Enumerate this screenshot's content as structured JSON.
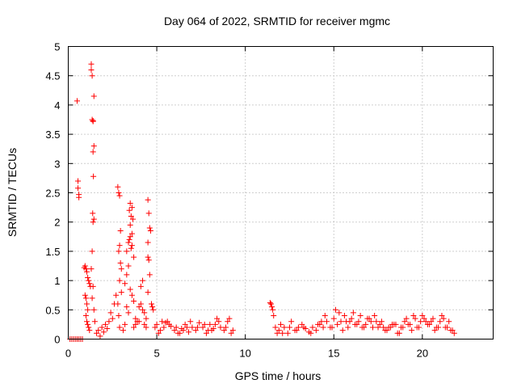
{
  "chart_data": {
    "type": "scatter",
    "title": "Day 064 of 2022, SRMTID for receiver mgmc",
    "xlabel": "GPS time / hours",
    "ylabel": "SRMTID / TECUs",
    "xlim": [
      0,
      24
    ],
    "ylim": [
      0,
      5
    ],
    "xticks": [
      0,
      5,
      10,
      15,
      20
    ],
    "xtick_labels": [
      "0",
      "5",
      "10",
      "15",
      "20"
    ],
    "yticks": [
      0,
      0.5,
      1,
      1.5,
      2,
      2.5,
      3,
      3.5,
      4,
      4.5,
      5
    ],
    "ytick_labels": [
      "0",
      "0.5",
      "1",
      "1.5",
      "2",
      "2.5",
      "3",
      "3.5",
      "4",
      "4.5",
      "5"
    ],
    "grid": true,
    "marker": "plus",
    "color": "#ff0000",
    "series": [
      {
        "name": "SRMTID",
        "x": [
          0.1,
          0.2,
          0.3,
          0.4,
          0.5,
          0.6,
          0.7,
          0.8,
          0.5,
          0.55,
          0.55,
          0.6,
          0.6,
          0.9,
          0.95,
          1.0,
          1.05,
          1.1,
          1.15,
          1.2,
          1.25,
          0.95,
          1.0,
          1.05,
          1.1,
          1.0,
          1.05,
          1.1,
          1.15,
          1.2,
          1.3,
          1.3,
          1.35,
          1.35,
          1.4,
          1.4,
          1.45,
          1.45,
          1.4,
          1.42,
          1.38,
          1.45,
          1.4,
          1.35,
          1.3,
          1.4,
          1.35,
          1.45,
          1.5,
          1.6,
          1.7,
          1.8,
          1.9,
          2.0,
          2.1,
          2.2,
          2.3,
          2.4,
          2.5,
          2.6,
          2.7,
          2.8,
          2.85,
          2.9,
          2.95,
          2.9,
          2.85,
          2.95,
          3.0,
          2.9,
          3.0,
          2.8,
          2.85,
          2.9,
          3.1,
          3.2,
          3.3,
          3.4,
          3.5,
          3.6,
          3.7,
          3.45,
          3.55,
          3.65,
          3.5,
          3.6,
          3.4,
          3.3,
          3.2,
          3.5,
          3.6,
          3.7,
          3.3,
          3.4,
          3.8,
          3.9,
          3.8,
          3.7,
          3.6,
          3.5,
          3.55,
          3.45,
          4.0,
          4.1,
          4.2,
          4.3,
          4.4,
          4.5,
          4.55,
          4.6,
          4.65,
          4.5,
          4.5,
          4.55,
          4.6,
          4.5,
          4.4,
          4.3,
          4.7,
          4.75,
          4.8,
          4.2,
          4.1,
          4.0,
          4.9,
          5.0,
          5.2,
          5.4,
          5.6,
          5.8,
          6.0,
          6.2,
          6.4,
          6.6,
          6.8,
          7.0,
          7.2,
          7.4,
          7.6,
          7.8,
          8.0,
          8.2,
          8.4,
          8.6,
          8.8,
          9.0,
          9.2,
          5.1,
          5.3,
          5.7,
          6.1,
          6.5,
          6.9,
          7.3,
          7.7,
          8.1,
          8.5,
          8.9,
          9.1,
          8.3,
          7.9,
          6.7,
          6.3,
          5.5,
          9.3,
          11.4,
          11.45,
          11.5,
          11.55,
          11.6,
          11.7,
          11.8,
          11.9,
          12.0,
          12.2,
          12.4,
          12.6,
          12.8,
          13.0,
          13.2,
          13.4,
          13.6,
          13.8,
          14.0,
          14.2,
          14.4,
          14.6,
          14.8,
          15.0,
          15.2,
          15.4,
          15.6,
          15.8,
          16.0,
          16.2,
          16.4,
          16.6,
          16.8,
          17.0,
          17.2,
          17.4,
          17.6,
          17.8,
          18.0,
          18.2,
          18.4,
          18.6,
          18.8,
          19.0,
          19.2,
          19.4,
          19.6,
          19.8,
          20.0,
          20.2,
          20.4,
          20.6,
          20.8,
          21.0,
          21.2,
          21.4,
          21.6,
          21.8,
          14.5,
          15.1,
          15.3,
          15.7,
          16.1,
          16.5,
          16.9,
          17.3,
          17.7,
          18.5,
          19.1,
          19.5,
          19.9,
          20.1,
          20.3,
          20.5,
          20.9,
          21.1,
          21.5,
          21.7,
          12.1,
          12.5,
          12.9,
          13.3,
          13.7,
          14.1,
          14.3,
          14.9,
          15.5,
          15.9,
          16.3,
          16.7,
          17.1,
          17.5,
          17.9,
          18.1,
          18.3,
          18.7,
          18.9,
          19.3,
          19.7,
          20.7,
          21.3
        ],
        "y": [
          0.0,
          0.0,
          0.0,
          0.0,
          0.0,
          0.0,
          0.0,
          0.0,
          4.07,
          2.7,
          2.58,
          2.47,
          2.42,
          1.22,
          1.25,
          1.2,
          1.15,
          1.05,
          1.0,
          0.95,
          0.9,
          0.75,
          0.7,
          0.6,
          0.5,
          0.4,
          0.3,
          0.25,
          0.2,
          0.15,
          4.7,
          4.6,
          4.5,
          3.75,
          3.73,
          3.72,
          4.15,
          3.3,
          3.2,
          2.78,
          2.15,
          2.05,
          2.0,
          1.5,
          1.2,
          0.9,
          0.7,
          0.5,
          0.3,
          0.1,
          0.15,
          0.05,
          0.2,
          0.12,
          0.25,
          0.18,
          0.3,
          0.45,
          0.35,
          0.6,
          0.75,
          2.6,
          2.5,
          2.45,
          1.85,
          1.6,
          1.5,
          1.3,
          1.2,
          1.0,
          0.8,
          0.6,
          0.4,
          0.2,
          0.15,
          0.25,
          1.5,
          1.65,
          1.75,
          1.6,
          1.4,
          2.2,
          2.1,
          2.05,
          1.95,
          1.8,
          1.25,
          1.1,
          0.95,
          0.85,
          0.75,
          0.65,
          0.55,
          0.45,
          0.35,
          0.3,
          0.25,
          0.2,
          2.25,
          2.32,
          1.55,
          1.7,
          0.55,
          0.6,
          0.5,
          0.45,
          0.35,
          2.38,
          2.15,
          1.9,
          1.85,
          1.65,
          1.4,
          1.35,
          1.1,
          0.8,
          0.2,
          0.25,
          0.6,
          0.55,
          0.5,
          1.0,
          0.9,
          0.3,
          0.2,
          0.25,
          0.15,
          0.2,
          0.3,
          0.22,
          0.15,
          0.1,
          0.18,
          0.25,
          0.12,
          0.2,
          0.15,
          0.28,
          0.2,
          0.1,
          0.25,
          0.18,
          0.35,
          0.2,
          0.15,
          0.3,
          0.1,
          0.1,
          0.3,
          0.25,
          0.2,
          0.15,
          0.3,
          0.2,
          0.25,
          0.15,
          0.3,
          0.2,
          0.35,
          0.25,
          0.15,
          0.2,
          0.1,
          0.28,
          0.15,
          0.62,
          0.6,
          0.55,
          0.5,
          0.4,
          0.2,
          0.1,
          0.15,
          0.25,
          0.2,
          0.1,
          0.3,
          0.15,
          0.2,
          0.25,
          0.18,
          0.12,
          0.2,
          0.15,
          0.25,
          0.2,
          0.3,
          0.2,
          0.35,
          0.25,
          0.3,
          0.4,
          0.2,
          0.35,
          0.25,
          0.3,
          0.2,
          0.25,
          0.35,
          0.2,
          0.3,
          0.25,
          0.2,
          0.15,
          0.2,
          0.25,
          0.1,
          0.2,
          0.3,
          0.25,
          0.15,
          0.35,
          0.2,
          0.4,
          0.3,
          0.25,
          0.35,
          0.2,
          0.3,
          0.35,
          0.2,
          0.15,
          0.1,
          0.4,
          0.5,
          0.45,
          0.3,
          0.45,
          0.4,
          0.35,
          0.4,
          0.3,
          0.25,
          0.35,
          0.4,
          0.3,
          0.35,
          0.25,
          0.3,
          0.2,
          0.4,
          0.3,
          0.15,
          0.1,
          0.2,
          0.15,
          0.2,
          0.1,
          0.25,
          0.3,
          0.2,
          0.15,
          0.3,
          0.25,
          0.2,
          0.3,
          0.2,
          0.15,
          0.2,
          0.25,
          0.1,
          0.2,
          0.25,
          0.2,
          0.15,
          0.2
        ]
      }
    ]
  }
}
